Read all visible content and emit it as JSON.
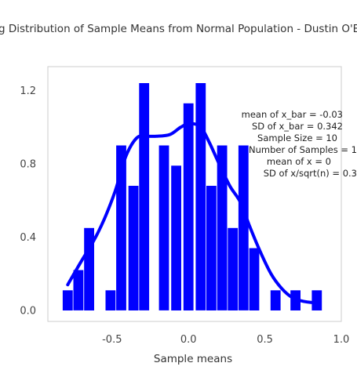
{
  "chart_data": {
    "type": "bar",
    "title": "g Distribution of Sample Means from Normal Population -  Dustin O'B",
    "xlabel": "Sample means",
    "ylabel": "",
    "xlim": [
      -0.92,
      1.0
    ],
    "ylim": [
      -0.06,
      1.33
    ],
    "x_ticks": [
      "-0.5",
      "0.0",
      "0.5",
      "1.0"
    ],
    "y_ticks": [
      "0.0",
      "0.4",
      "0.8",
      "1.2"
    ],
    "bar_color": "#0000ff",
    "curve_color": "#0000ff",
    "grid": false,
    "bars": [
      {
        "x": -0.79,
        "y": 0.11
      },
      {
        "x": -0.72,
        "y": 0.22
      },
      {
        "x": -0.65,
        "y": 0.45
      },
      {
        "x": -0.51,
        "y": 0.11
      },
      {
        "x": -0.44,
        "y": 0.9
      },
      {
        "x": -0.36,
        "y": 0.68
      },
      {
        "x": -0.29,
        "y": 1.24
      },
      {
        "x": -0.16,
        "y": 0.9
      },
      {
        "x": -0.08,
        "y": 0.79
      },
      {
        "x": 0.0,
        "y": 1.13
      },
      {
        "x": 0.08,
        "y": 1.24
      },
      {
        "x": 0.15,
        "y": 0.68
      },
      {
        "x": 0.22,
        "y": 0.9
      },
      {
        "x": 0.29,
        "y": 0.45
      },
      {
        "x": 0.36,
        "y": 0.9
      },
      {
        "x": 0.43,
        "y": 0.34
      },
      {
        "x": 0.57,
        "y": 0.11
      },
      {
        "x": 0.7,
        "y": 0.11
      },
      {
        "x": 0.84,
        "y": 0.11
      }
    ],
    "curve": {
      "x": [
        -0.79,
        -0.7,
        -0.62,
        -0.55,
        -0.48,
        -0.41,
        -0.34,
        -0.28,
        -0.21,
        -0.12,
        -0.05,
        0.01,
        0.08,
        0.14,
        0.2,
        0.27,
        0.34,
        0.4,
        0.47,
        0.54,
        0.61,
        0.68,
        0.75,
        0.84
      ],
      "y": [
        0.14,
        0.27,
        0.38,
        0.5,
        0.65,
        0.84,
        0.94,
        0.95,
        0.95,
        0.96,
        1.0,
        1.02,
        1.0,
        0.91,
        0.8,
        0.68,
        0.59,
        0.46,
        0.32,
        0.2,
        0.12,
        0.07,
        0.05,
        0.04
      ]
    },
    "annotations": [
      "mean of x_bar = -0.03",
      "SD of x_bar = 0.342",
      "Sample Size = 10",
      "Number of Samples = 1",
      "mean of x = 0",
      "SD of x/sqrt(n) = 0.3"
    ]
  }
}
